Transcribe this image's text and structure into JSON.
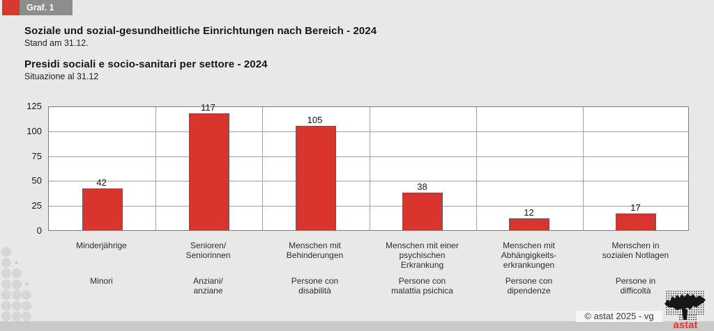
{
  "header": {
    "graf_label": "Graf. 1",
    "title_de": "Soziale und sozial-gesundheitliche Einrichtungen nach Bereich - 2024",
    "subtitle_de": "Stand am 31.12.",
    "title_it": "Presidi sociali e socio-sanitari per settore - 2024",
    "subtitle_it": "Situazione al 31.12"
  },
  "chart_data": {
    "type": "bar",
    "title": "Soziale und sozial-gesundheitliche Einrichtungen nach Bereich - 2024",
    "title_it": "Presidi sociali e socio-sanitari per settore - 2024",
    "categories_de": [
      "Minderjährige",
      "Senioren/\nSeniorinnen",
      "Menschen mit\nBehinderungen",
      "Menschen mit einer\npsychischen\nErkrankung",
      "Menschen mit\nAbhängigkeits-\nerkrankungen",
      "Menschen in\nsozialen Notlagen"
    ],
    "categories_it": [
      "Minori",
      "Anziani/\nanziane",
      "Persone con\ndisabilità",
      "Persone con\nmalattia psichica",
      "Persone con\ndipendenze",
      "Persone in\ndifficoltà"
    ],
    "values": [
      42,
      117,
      105,
      38,
      12,
      17
    ],
    "yticks": [
      0,
      25,
      50,
      75,
      100,
      125
    ],
    "ylim": [
      0,
      125
    ],
    "xlabel": "",
    "ylabel": "",
    "grid": true,
    "legend": "none",
    "bar_color": "#d9352f"
  },
  "footer": {
    "copyright": "© astat 2025 - vg",
    "logo_text": "astat"
  },
  "colors": {
    "page_background": "#e8e8e6",
    "accent_red": "#d8382f",
    "badge_gray": "#8d8d8c",
    "bar_red": "#d9352f",
    "logo_red": "#e5342c",
    "footer_gray": "#c9c9c7"
  }
}
